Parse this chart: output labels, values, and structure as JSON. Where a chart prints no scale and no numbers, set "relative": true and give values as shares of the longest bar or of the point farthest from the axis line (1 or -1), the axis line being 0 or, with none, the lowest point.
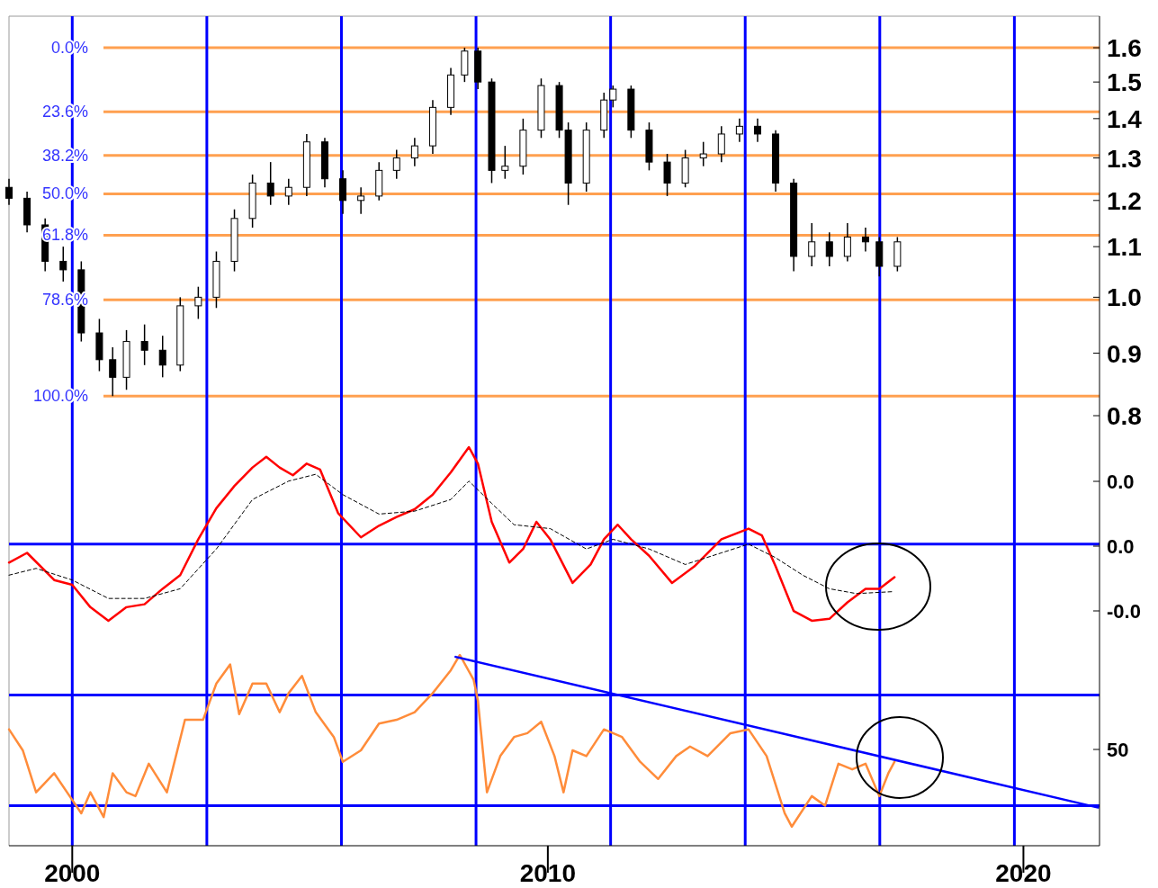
{
  "chart_data": [
    {
      "type": "candlestick",
      "color": "#000000",
      "log": true,
      "xlim": [
        1998.67,
        2021.6
      ],
      "ylim": [
        0.776,
        1.698
      ],
      "tick_labels": "y",
      "yticks": [
        0.8,
        0.9,
        {
          "value": 1,
          "label": "1.0"
        },
        1.1,
        1.2,
        1.3,
        1.4,
        1.5,
        1.6
      ],
      "x": [
        1998.67,
        1999.05,
        1999.43,
        1999.81,
        2000.19,
        2000.57,
        2000.85,
        2001.14,
        2001.52,
        2001.9,
        2002.27,
        2002.65,
        2003.03,
        2003.41,
        2003.79,
        2004.17,
        2004.55,
        2004.93,
        2005.31,
        2005.69,
        2006.07,
        2006.45,
        2006.82,
        2007.2,
        2007.58,
        2007.96,
        2008.25,
        2008.53,
        2008.82,
        2009.1,
        2009.48,
        2009.86,
        2010.24,
        2010.43,
        2010.81,
        2011.18,
        2011.37,
        2011.75,
        2012.13,
        2012.51,
        2012.89,
        2013.27,
        2013.65,
        2014.03,
        2014.41,
        2014.79,
        2015.17,
        2015.55,
        2015.92,
        2016.3,
        2016.68,
        2016.97,
        2017.35
      ],
      "ohlc": [
        [
          1.23,
          1.25,
          1.19,
          1.205
        ],
        [
          1.205,
          1.22,
          1.13,
          1.146
        ],
        [
          1.146,
          1.16,
          1.05,
          1.07
        ],
        [
          1.07,
          1.1,
          1.03,
          1.053
        ],
        [
          1.053,
          1.07,
          0.92,
          0.935
        ],
        [
          0.935,
          0.96,
          0.87,
          0.889
        ],
        [
          0.889,
          0.91,
          0.83,
          0.86
        ],
        [
          0.86,
          0.94,
          0.84,
          0.92
        ],
        [
          0.92,
          0.95,
          0.88,
          0.905
        ],
        [
          0.905,
          0.93,
          0.86,
          0.88
        ],
        [
          0.88,
          1.0,
          0.87,
          0.984
        ],
        [
          0.984,
          1.02,
          0.96,
          1.0
        ],
        [
          1.0,
          1.09,
          0.98,
          1.07
        ],
        [
          1.07,
          1.18,
          1.05,
          1.16
        ],
        [
          1.16,
          1.26,
          1.14,
          1.24
        ],
        [
          1.24,
          1.29,
          1.19,
          1.21
        ],
        [
          1.21,
          1.25,
          1.19,
          1.23
        ],
        [
          1.23,
          1.36,
          1.21,
          1.34
        ],
        [
          1.34,
          1.35,
          1.23,
          1.25
        ],
        [
          1.25,
          1.27,
          1.17,
          1.2
        ],
        [
          1.2,
          1.23,
          1.17,
          1.21
        ],
        [
          1.21,
          1.29,
          1.2,
          1.27
        ],
        [
          1.27,
          1.32,
          1.25,
          1.3
        ],
        [
          1.3,
          1.35,
          1.28,
          1.33
        ],
        [
          1.33,
          1.45,
          1.31,
          1.43
        ],
        [
          1.43,
          1.54,
          1.41,
          1.52
        ],
        [
          1.52,
          1.6,
          1.5,
          1.59
        ],
        [
          1.59,
          1.6,
          1.48,
          1.5
        ],
        [
          1.5,
          1.51,
          1.24,
          1.27
        ],
        [
          1.27,
          1.33,
          1.25,
          1.28
        ],
        [
          1.28,
          1.4,
          1.26,
          1.37
        ],
        [
          1.37,
          1.51,
          1.35,
          1.49
        ],
        [
          1.49,
          1.5,
          1.35,
          1.37
        ],
        [
          1.37,
          1.39,
          1.19,
          1.24
        ],
        [
          1.24,
          1.39,
          1.22,
          1.37
        ],
        [
          1.37,
          1.47,
          1.35,
          1.45
        ],
        [
          1.45,
          1.49,
          1.43,
          1.48
        ],
        [
          1.48,
          1.49,
          1.35,
          1.37
        ],
        [
          1.37,
          1.39,
          1.27,
          1.29
        ],
        [
          1.29,
          1.31,
          1.21,
          1.24
        ],
        [
          1.24,
          1.32,
          1.23,
          1.3
        ],
        [
          1.3,
          1.34,
          1.28,
          1.31
        ],
        [
          1.31,
          1.38,
          1.29,
          1.36
        ],
        [
          1.36,
          1.4,
          1.34,
          1.38
        ],
        [
          1.38,
          1.4,
          1.34,
          1.36
        ],
        [
          1.36,
          1.37,
          1.22,
          1.24
        ],
        [
          1.24,
          1.25,
          1.05,
          1.08
        ],
        [
          1.08,
          1.15,
          1.06,
          1.11
        ],
        [
          1.11,
          1.13,
          1.06,
          1.08
        ],
        [
          1.08,
          1.15,
          1.07,
          1.12
        ],
        [
          1.12,
          1.14,
          1.09,
          1.11
        ],
        [
          1.11,
          1.12,
          1.04,
          1.06
        ],
        [
          1.06,
          1.12,
          1.05,
          1.11
        ]
      ],
      "annotations": [
        "0.0%",
        "23.6%",
        "38.2%",
        "50.0%",
        "61.8%",
        "78.6%",
        "100.0%"
      ],
      "ref_lines": [
        {
          "axis": "y",
          "value": 1.6,
          "color": "#ffa050"
        },
        {
          "axis": "y",
          "value": 1.418,
          "color": "#ffa050"
        },
        {
          "axis": "y",
          "value": 1.306,
          "color": "#ffa050"
        },
        {
          "axis": "y",
          "value": 1.215,
          "color": "#ffa050"
        },
        {
          "axis": "y",
          "value": 1.124,
          "color": "#ffa050"
        },
        {
          "axis": "y",
          "value": 0.995,
          "color": "#ffa050"
        },
        {
          "axis": "y",
          "value": 0.83,
          "color": "#ffa050"
        },
        {
          "axis": "x",
          "value": 2000.0,
          "color": "#0000ff"
        },
        {
          "axis": "x",
          "value": 2002.83,
          "color": "#0000ff"
        },
        {
          "axis": "x",
          "value": 2005.66,
          "color": "#0000ff"
        },
        {
          "axis": "x",
          "value": 2008.49,
          "color": "#0000ff"
        },
        {
          "axis": "x",
          "value": 2011.32,
          "color": "#0000ff"
        },
        {
          "axis": "x",
          "value": 2014.15,
          "color": "#0000ff"
        },
        {
          "axis": "x",
          "value": 2016.98,
          "color": "#0000ff"
        },
        {
          "axis": "x",
          "value": 2019.81,
          "color": "#0000ff"
        }
      ]
    },
    {
      "type": "line",
      "relative": true,
      "xlim": [
        1998.67,
        2021.6
      ],
      "tick_labels": "y",
      "annotations": [
        "0.0",
        "0.0",
        "-0.0"
      ],
      "series": [
        {
          "color": "#ff0000",
          "line_style": "solid",
          "x": [
            1998.67,
            1999.05,
            1999.62,
            2000.0,
            2000.38,
            2000.76,
            2001.14,
            2001.52,
            2001.9,
            2002.27,
            2002.65,
            2003.03,
            2003.41,
            2003.79,
            2004.08,
            2004.36,
            2004.64,
            2004.93,
            2005.21,
            2005.59,
            2006.07,
            2006.45,
            2006.82,
            2007.2,
            2007.58,
            2007.96,
            2008.34,
            2008.53,
            2008.82,
            2009.19,
            2009.48,
            2009.76,
            2010.05,
            2010.52,
            2010.9,
            2011.18,
            2011.47,
            2011.75,
            2012.13,
            2012.61,
            2013.08,
            2013.65,
            2014.22,
            2014.5,
            2014.79,
            2015.17,
            2015.55,
            2015.92,
            2016.3,
            2016.68,
            2016.97,
            2017.29
          ],
          "values": [
            -0.19,
            -0.09,
            -0.37,
            -0.42,
            -0.65,
            -0.79,
            -0.65,
            -0.62,
            -0.46,
            -0.32,
            0.05,
            0.37,
            0.6,
            0.79,
            0.9,
            0.79,
            0.71,
            0.83,
            0.77,
            0.32,
            0.07,
            0.19,
            0.28,
            0.36,
            0.51,
            0.74,
            1.0,
            0.83,
            0.23,
            -0.19,
            -0.05,
            0.23,
            0.05,
            -0.4,
            -0.21,
            0.05,
            0.2,
            0.05,
            -0.12,
            -0.4,
            -0.23,
            0.05,
            0.16,
            0.09,
            -0.23,
            -0.69,
            -0.79,
            -0.77,
            -0.6,
            -0.46,
            -0.46,
            -0.34
          ]
        },
        {
          "color": "#000000",
          "line_style": "dashed",
          "x": [
            1998.67,
            1999.24,
            2000.0,
            2000.76,
            2001.52,
            2002.27,
            2003.03,
            2003.79,
            2004.55,
            2005.12,
            2005.69,
            2006.45,
            2007.2,
            2007.96,
            2008.34,
            2008.82,
            2009.29,
            2010.05,
            2010.81,
            2011.37,
            2012.13,
            2012.89,
            2013.65,
            2014.22,
            2014.79,
            2015.36,
            2015.92,
            2016.49,
            2017.25
          ],
          "values": [
            -0.32,
            -0.25,
            -0.37,
            -0.56,
            -0.56,
            -0.46,
            -0.05,
            0.46,
            0.65,
            0.72,
            0.51,
            0.31,
            0.34,
            0.46,
            0.65,
            0.42,
            0.2,
            0.16,
            -0.05,
            0.05,
            -0.05,
            -0.21,
            -0.09,
            0,
            -0.14,
            -0.32,
            -0.46,
            -0.51,
            -0.49
          ]
        }
      ],
      "ref_lines": [
        {
          "axis": "y",
          "value": 0,
          "color": "#0000ff"
        },
        {
          "axis": "x",
          "value": 2000.0,
          "color": "#0000ff"
        },
        {
          "axis": "x",
          "value": 2002.83,
          "color": "#0000ff"
        },
        {
          "axis": "x",
          "value": 2005.66,
          "color": "#0000ff"
        },
        {
          "axis": "x",
          "value": 2008.49,
          "color": "#0000ff"
        },
        {
          "axis": "x",
          "value": 2011.32,
          "color": "#0000ff"
        },
        {
          "axis": "x",
          "value": 2014.15,
          "color": "#0000ff"
        },
        {
          "axis": "x",
          "value": 2016.98,
          "color": "#0000ff"
        },
        {
          "axis": "x",
          "value": 2019.81,
          "color": "#0000ff"
        }
      ]
    },
    {
      "type": "line",
      "relative": true,
      "xlim": [
        1998.67,
        2021.6
      ],
      "xticks": [
        2000,
        2010,
        2020
      ],
      "annotations": [
        "50"
      ],
      "series": [
        {
          "color": "#ff8c3a",
          "x": [
            1998.67,
            1998.96,
            1999.24,
            1999.62,
            2000.0,
            2000.19,
            2000.38,
            2000.66,
            2000.85,
            2001.14,
            2001.33,
            2001.61,
            2001.99,
            2002.37,
            2002.75,
            2003.03,
            2003.32,
            2003.51,
            2003.79,
            2004.08,
            2004.36,
            2004.55,
            2004.83,
            2005.12,
            2005.5,
            2005.69,
            2006.07,
            2006.45,
            2006.82,
            2007.2,
            2007.58,
            2007.96,
            2008.15,
            2008.44,
            2008.53,
            2008.72,
            2009.0,
            2009.29,
            2009.57,
            2009.86,
            2010.14,
            2010.33,
            2010.52,
            2010.81,
            2011.18,
            2011.56,
            2011.94,
            2012.32,
            2012.7,
            2012.99,
            2013.36,
            2013.84,
            2014.22,
            2014.6,
            2014.98,
            2015.13,
            2015.55,
            2015.83,
            2016.11,
            2016.4,
            2016.68,
            2016.97,
            2017.16,
            2017.29
          ],
          "values": [
            0.61,
            0.5,
            0.28,
            0.38,
            0.24,
            0.17,
            0.28,
            0.15,
            0.38,
            0.28,
            0.26,
            0.43,
            0.28,
            0.66,
            0.66,
            0.85,
            0.95,
            0.69,
            0.85,
            0.85,
            0.7,
            0.8,
            0.89,
            0.7,
            0.57,
            0.44,
            0.5,
            0.64,
            0.66,
            0.7,
            0.8,
            0.92,
            1.0,
            0.87,
            0.76,
            0.28,
            0.47,
            0.57,
            0.59,
            0.65,
            0.47,
            0.28,
            0.5,
            0.47,
            0.61,
            0.57,
            0.44,
            0.35,
            0.47,
            0.52,
            0.47,
            0.59,
            0.61,
            0.47,
            0.17,
            0.1,
            0.26,
            0.21,
            0.43,
            0.4,
            0.43,
            0.26,
            0.38,
            0.44
          ]
        },
        {
          "type": "line",
          "color": "#0000ff",
          "x": [
            2008.06,
            2021.57
          ],
          "values": [
            0.99,
            0.2
          ]
        }
      ],
      "ref_lines": [
        {
          "axis": "y",
          "value": 0.79,
          "color": "#0000ff"
        },
        {
          "axis": "y",
          "value": 0.21,
          "color": "#0000ff"
        },
        {
          "axis": "x",
          "value": 2000.0,
          "color": "#0000ff"
        },
        {
          "axis": "x",
          "value": 2002.83,
          "color": "#0000ff"
        },
        {
          "axis": "x",
          "value": 2005.66,
          "color": "#0000ff"
        },
        {
          "axis": "x",
          "value": 2008.49,
          "color": "#0000ff"
        },
        {
          "axis": "x",
          "value": 2011.32,
          "color": "#0000ff"
        },
        {
          "axis": "x",
          "value": 2014.15,
          "color": "#0000ff"
        },
        {
          "axis": "x",
          "value": 2016.98,
          "color": "#0000ff"
        },
        {
          "axis": "x",
          "value": 2019.81,
          "color": "#0000ff"
        }
      ]
    }
  ]
}
